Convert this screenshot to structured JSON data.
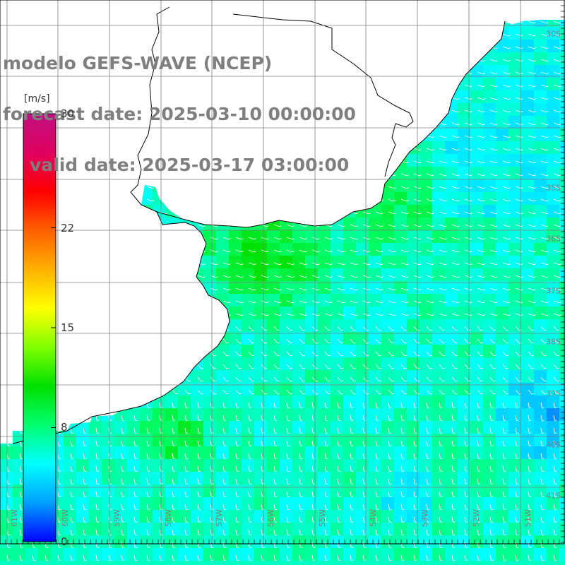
{
  "title": {
    "line1": "modelo GEFS-WAVE (NCEP)",
    "line2": "forecast date: 2025-03-10 00:00:00",
    "line3": "valid date: 2025-03-17 03:00:00"
  },
  "colorbar": {
    "units": "[m/s]",
    "ticks": [
      "30",
      "22",
      "15",
      "8",
      "0"
    ],
    "tick_values": [
      30,
      22,
      15,
      8,
      0
    ],
    "range": [
      0,
      30
    ],
    "stops": [
      "#0000ff",
      "#00a0ff",
      "#00ffff",
      "#00ff70",
      "#00e000",
      "#80ff00",
      "#ffff00",
      "#ffb000",
      "#ff6000",
      "#ff0000",
      "#e00060",
      "#c01080"
    ]
  },
  "lat_labels": [
    "30S",
    "35S",
    "36S",
    "37S",
    "38S",
    "39S",
    "40S",
    "41S"
  ],
  "lon_labels": [
    "61W",
    "60W",
    "59W",
    "58W",
    "57W",
    "56W",
    "55W",
    "54W",
    "53W",
    "52W",
    "51W"
  ],
  "colors": {
    "land": "#ffffff",
    "grid": "#808080",
    "arrows": "#ffffff",
    "text": "#7f7f7f"
  }
}
